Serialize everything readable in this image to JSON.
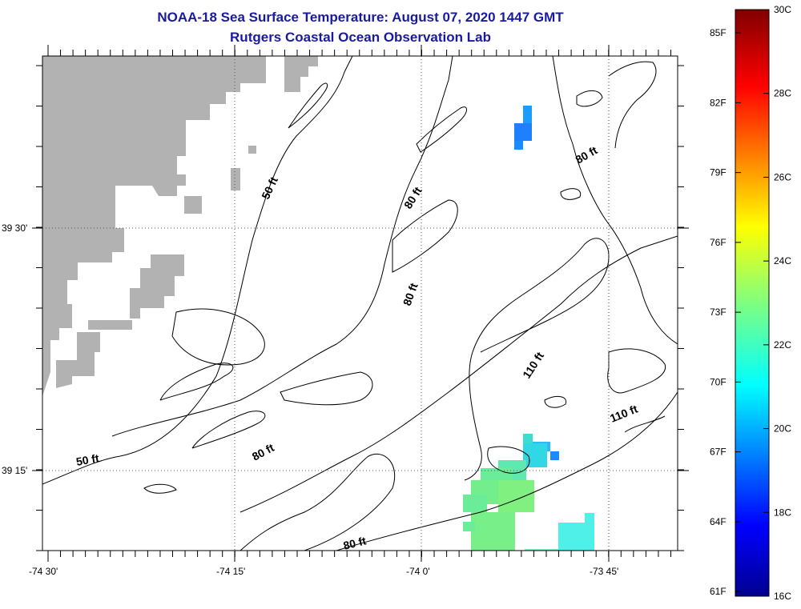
{
  "header": {
    "title": "NOAA-18 Sea Surface Temperature:  August 07, 2020 1447 GMT",
    "subtitle": "Rutgers Coastal Ocean Observation Lab"
  },
  "map": {
    "lon_ticks": [
      "-74 30'",
      "-74 15'",
      "-74 0'",
      "-73 45'"
    ],
    "lat_ticks": [
      "39 30'",
      "39 15'"
    ],
    "contour_labels": [
      "50 ft",
      "50 ft",
      "80 ft",
      "80 ft",
      "80 ft",
      "80 ft",
      "110 ft",
      "110 ft"
    ],
    "colors": {
      "land": "#b2b2b2",
      "contour": "#000000",
      "frame": "#000000"
    }
  },
  "colorbar": {
    "celsius": [
      "30C",
      "28C",
      "26C",
      "24C",
      "22C",
      "20C",
      "18C",
      "16C"
    ],
    "fahrenheit": [
      "85F",
      "82F",
      "79F",
      "76F",
      "73F",
      "70F",
      "67F",
      "64F",
      "61F"
    ],
    "range_c": [
      16,
      30
    ]
  }
}
